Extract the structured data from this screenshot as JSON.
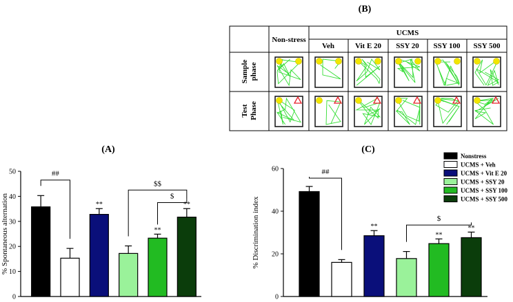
{
  "panel_labels": {
    "a": "(A)",
    "b": "(B)",
    "c": "(C)"
  },
  "legend": [
    {
      "label": "Nonstress",
      "color": "#000000"
    },
    {
      "label": "UCMS + Veh",
      "color": "#ffffff"
    },
    {
      "label": "UCMS + Vit E 20",
      "color": "#0a0f7a"
    },
    {
      "label": "UCMS + SSY 20",
      "color": "#9af29a"
    },
    {
      "label": "UCMS + SSY 100",
      "color": "#22bb22"
    },
    {
      "label": "UCMS + SSY 500",
      "color": "#0b3d0b"
    }
  ],
  "track_table": {
    "corner_label": "Non-stress",
    "group_label": "UCMS",
    "columns": [
      "Veh",
      "Vit E 20",
      "SSY 20",
      "SSY 100",
      "SSY 500"
    ],
    "rows": [
      {
        "label_line1": "Sample",
        "label_line2": "phase",
        "novel": false
      },
      {
        "label_line1": "Test",
        "label_line2": "Phase",
        "novel": true
      }
    ],
    "track_color": "#33dd33",
    "object_color": "#f2e600",
    "novel_object_color": "#e8202a"
  },
  "chart_data": [
    {
      "type": "bar",
      "panel": "A",
      "ylabel": "% Spontaneous alternation",
      "ylim": [
        0,
        50
      ],
      "yticks": [
        0,
        10,
        20,
        30,
        40,
        50
      ],
      "categories": [
        "Nonstress",
        "UCMS + Veh",
        "UCMS + Vit E 20",
        "UCMS + SSY 20",
        "UCMS + SSY 100",
        "UCMS + SSY 500"
      ],
      "values": [
        35.8,
        15.3,
        32.8,
        17.2,
        23.3,
        31.7
      ],
      "errors": [
        4.5,
        3.9,
        2.3,
        3.0,
        1.6,
        3.4
      ],
      "colors": [
        "#000000",
        "#ffffff",
        "#0a0f7a",
        "#9af29a",
        "#22bb22",
        "#0b3d0b"
      ],
      "star_labels": [
        "",
        "",
        "**",
        "",
        "**",
        "**"
      ],
      "brackets": [
        {
          "from": 0,
          "to": 1,
          "level": 46.5,
          "label": "##"
        },
        {
          "from": 3,
          "to": 5,
          "level": 42.5,
          "label": "$$"
        },
        {
          "from": 4,
          "to": 5,
          "level": 37.5,
          "label": "$"
        }
      ]
    },
    {
      "type": "bar",
      "panel": "C",
      "ylabel": "% Discrimination index",
      "ylim": [
        0,
        60
      ],
      "yticks": [
        0,
        20,
        40,
        60
      ],
      "categories": [
        "Nonstress",
        "UCMS + Veh",
        "UCMS + Vit E 20",
        "UCMS + SSY 20",
        "UCMS + SSY 100",
        "UCMS + SSY 500"
      ],
      "values": [
        49.2,
        16.0,
        28.5,
        17.8,
        24.8,
        27.6
      ],
      "errors": [
        2.4,
        1.3,
        2.4,
        3.3,
        2.2,
        2.6
      ],
      "colors": [
        "#000000",
        "#ffffff",
        "#0a0f7a",
        "#9af29a",
        "#22bb22",
        "#0b3d0b"
      ],
      "star_labels": [
        "",
        "",
        "**",
        "",
        "**",
        "**"
      ],
      "brackets": [
        {
          "from": 0,
          "to": 1,
          "level": 55.5,
          "label": "##"
        },
        {
          "from": 3,
          "to": 5,
          "level": 33.5,
          "label": "$"
        }
      ]
    }
  ]
}
